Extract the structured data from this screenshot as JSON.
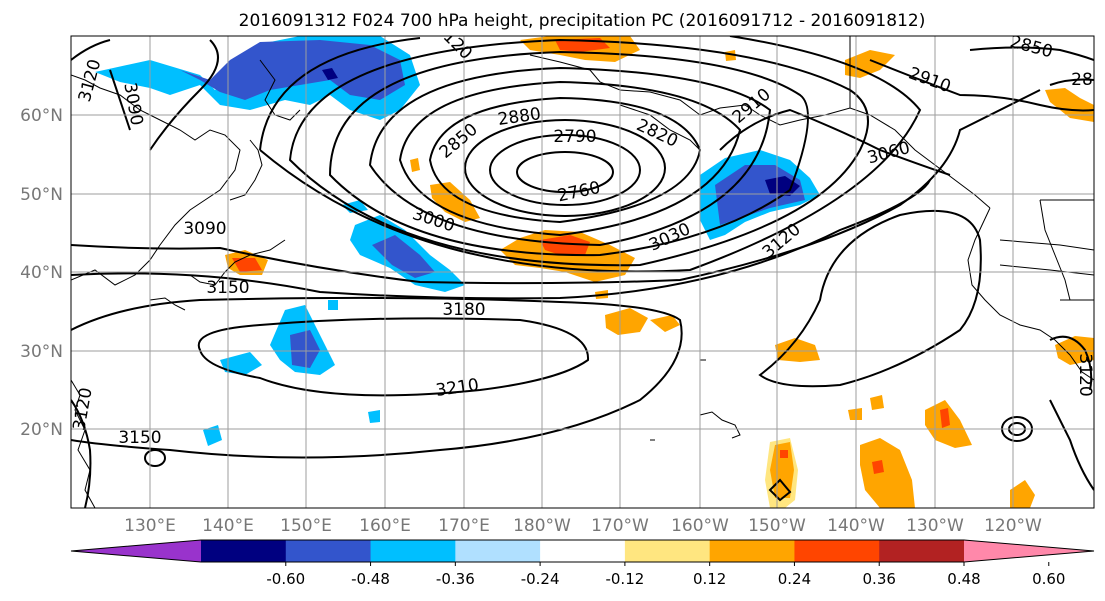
{
  "title": "2016091312 F024 700 hPa height, precipitation PC (2016091712 - 2016091812)",
  "lat_labels": [
    "60°N",
    "50°N",
    "40°N",
    "30°N",
    "20°N"
  ],
  "lon_labels": [
    "130°E",
    "140°E",
    "150°E",
    "160°E",
    "170°E",
    "180°W",
    "170°W",
    "160°W",
    "150°W",
    "140°W",
    "130°W",
    "120°W"
  ],
  "contour_labels": [
    "3120",
    "3090",
    "3090",
    "3150",
    "3000",
    "2850",
    "2880",
    "2790",
    "2820",
    "2760",
    "3030",
    "3120",
    "2910",
    "3060",
    "2910",
    "2850",
    "28",
    "3180",
    "3210",
    "3150",
    "3120",
    "3120",
    "3120"
  ],
  "colorbar": {
    "tick_labels": [
      "-0.60",
      "-0.48",
      "-0.36",
      "-0.24",
      "-0.12",
      "0.12",
      "0.24",
      "0.36",
      "0.48",
      "0.60"
    ],
    "colors": [
      "#9933cc",
      "#000080",
      "#3355cc",
      "#00bfff",
      "#b0e0ff",
      "#ffffff",
      "#ffe680",
      "#ffa500",
      "#ff4500",
      "#b22222",
      "#ff88aa"
    ]
  }
}
